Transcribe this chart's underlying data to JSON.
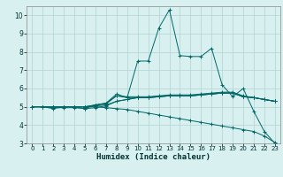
{
  "xlabel": "Humidex (Indice chaleur)",
  "bg_color": "#d8f0f0",
  "grid_color": "#b8d8d8",
  "line_color": "#006666",
  "xlim": [
    -0.5,
    23.5
  ],
  "ylim": [
    3,
    10.5
  ],
  "yticks": [
    3,
    4,
    5,
    6,
    7,
    8,
    9,
    10
  ],
  "xticks": [
    0,
    1,
    2,
    3,
    4,
    5,
    6,
    7,
    8,
    9,
    10,
    11,
    12,
    13,
    14,
    15,
    16,
    17,
    18,
    19,
    20,
    21,
    22,
    23
  ],
  "line1_x": [
    0,
    1,
    2,
    3,
    4,
    5,
    6,
    7,
    8,
    9,
    10,
    11,
    12,
    13,
    14,
    15,
    16,
    17,
    18,
    19,
    20,
    21,
    22,
    23
  ],
  "line1_y": [
    5.0,
    5.0,
    4.9,
    5.0,
    5.0,
    4.9,
    5.1,
    5.2,
    5.7,
    5.5,
    7.5,
    7.5,
    9.3,
    10.3,
    7.8,
    7.75,
    7.75,
    8.2,
    6.2,
    5.55,
    6.0,
    4.75,
    3.65,
    3.0
  ],
  "line2_x": [
    0,
    1,
    2,
    3,
    4,
    5,
    6,
    7,
    8,
    9,
    10,
    11,
    12,
    13,
    14,
    15,
    16,
    17,
    18,
    19,
    20,
    21,
    22,
    23
  ],
  "line2_y": [
    5.0,
    5.0,
    5.0,
    5.0,
    5.0,
    5.0,
    5.05,
    5.1,
    5.3,
    5.4,
    5.5,
    5.5,
    5.55,
    5.6,
    5.6,
    5.6,
    5.65,
    5.7,
    5.75,
    5.75,
    5.55,
    5.5,
    5.4,
    5.3
  ],
  "line3_x": [
    0,
    1,
    2,
    3,
    4,
    5,
    6,
    7,
    8,
    9,
    10,
    11,
    12,
    13,
    14,
    15,
    16,
    17,
    18,
    19,
    20,
    21,
    22,
    23
  ],
  "line3_y": [
    5.0,
    5.0,
    4.95,
    4.95,
    4.95,
    4.9,
    4.95,
    5.05,
    5.3,
    5.4,
    5.5,
    5.5,
    5.55,
    5.6,
    5.6,
    5.6,
    5.65,
    5.7,
    5.75,
    5.75,
    5.55,
    5.5,
    5.4,
    5.3
  ],
  "line4_x": [
    0,
    1,
    2,
    3,
    4,
    5,
    6,
    7,
    8,
    9,
    10,
    11,
    12,
    13,
    14,
    15,
    16,
    17,
    18,
    19,
    20,
    21,
    22,
    23
  ],
  "line4_y": [
    5.0,
    5.0,
    5.0,
    5.0,
    5.0,
    5.0,
    5.1,
    5.15,
    5.6,
    5.5,
    5.5,
    5.5,
    5.55,
    5.6,
    5.6,
    5.6,
    5.65,
    5.7,
    5.75,
    5.75,
    5.55,
    5.5,
    5.4,
    5.3
  ],
  "line5_x": [
    0,
    1,
    2,
    3,
    4,
    5,
    6,
    7,
    8,
    9,
    10,
    11,
    12,
    13,
    14,
    15,
    16,
    17,
    18,
    19,
    20,
    21,
    22,
    23
  ],
  "line5_y": [
    5.0,
    5.0,
    5.0,
    5.0,
    5.0,
    5.0,
    5.1,
    5.2,
    5.6,
    5.55,
    5.55,
    5.55,
    5.6,
    5.65,
    5.65,
    5.65,
    5.7,
    5.75,
    5.8,
    5.8,
    5.6,
    5.5,
    5.4,
    5.3
  ],
  "declining_x": [
    0,
    1,
    2,
    3,
    4,
    5,
    6,
    7,
    8,
    9,
    10,
    11,
    12,
    13,
    14,
    15,
    16,
    17,
    18,
    19,
    20,
    21,
    22,
    23
  ],
  "declining_y": [
    5.0,
    5.0,
    5.0,
    5.0,
    5.0,
    5.0,
    5.0,
    4.95,
    4.9,
    4.85,
    4.75,
    4.65,
    4.55,
    4.45,
    4.35,
    4.25,
    4.15,
    4.05,
    3.95,
    3.85,
    3.75,
    3.65,
    3.4,
    3.05
  ]
}
